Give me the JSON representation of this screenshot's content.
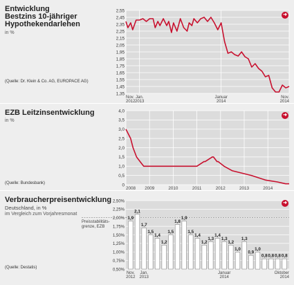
{
  "charts": [
    {
      "title_lines": [
        "Entwicklung",
        "Bestzins 10-jähriger",
        "Hypothekendarlehen"
      ],
      "unit": "in %",
      "source": "(Quelle: Dr. Klein & Co. AG, EUROPACE AG)"
    },
    {
      "title_lines": [
        "EZB Leitzinsentwicklung"
      ],
      "unit": "in %",
      "source": "(Quelle: Bundesbank)"
    },
    {
      "title_lines": [
        "Verbraucherpreisentwicklung"
      ],
      "subtitle": "Deutschland, in %",
      "note": "im Vergleich zum Vorjahresmonat",
      "annotation_lines": [
        "Preisstabilitäts-",
        "grenze, EZB"
      ],
      "source": "(Quelle: Destatis)"
    }
  ],
  "nav_icon": "arrow-right-circle-icon",
  "colors": {
    "line": "#c8102e",
    "panel_bg": "#eeeeee",
    "plot_bg": "#dcdcdc",
    "bar_fill": "#ffffff",
    "accent": "#c8102e"
  },
  "chart_data": [
    {
      "type": "line",
      "title": "Entwicklung Bestzins 10-jähriger Hypothekendarlehen",
      "ylabel": "in %",
      "ylim": [
        1.35,
        2.55
      ],
      "yticks": [
        "2,55",
        "2,45",
        "2,35",
        "2,25",
        "2,15",
        "2,05",
        "1,95",
        "1,85",
        "1,75",
        "1,65",
        "1,55",
        "1,45",
        "1,35"
      ],
      "x_ticks": [
        {
          "label": [
            "Nov.",
            "2012"
          ],
          "t": 0
        },
        {
          "label": [
            "Jan.",
            "2013"
          ],
          "t": 2
        },
        {
          "label": [
            "Januar",
            "2014"
          ],
          "t": 14
        },
        {
          "label": [
            "Nov.",
            "2014"
          ],
          "t": 24
        }
      ],
      "series": [
        {
          "t": [
            0,
            0.3,
            0.7,
            1.0,
            1.5,
            2.0,
            2.5,
            3.0,
            3.5,
            4.0,
            4.3,
            4.7,
            5.0,
            5.5,
            6.0,
            6.3,
            6.7,
            7.0,
            7.5,
            8.0,
            8.5,
            9.0,
            9.3,
            9.7,
            10.0,
            10.5,
            11.0,
            11.5,
            12.0,
            12.5,
            13.0,
            13.5,
            14.0,
            14.5,
            15.0,
            15.5,
            16.0,
            16.5,
            17.0,
            17.5,
            18.0,
            18.5,
            19.0,
            19.5,
            20.0,
            20.5,
            21.0,
            21.5,
            22.0,
            22.5,
            23.0,
            23.5,
            24.0
          ],
          "values": [
            2.39,
            2.3,
            2.37,
            2.27,
            2.41,
            2.41,
            2.43,
            2.39,
            2.43,
            2.43,
            2.3,
            2.39,
            2.33,
            2.43,
            2.33,
            2.39,
            2.23,
            2.37,
            2.25,
            2.43,
            2.3,
            2.25,
            2.37,
            2.33,
            2.43,
            2.37,
            2.43,
            2.45,
            2.39,
            2.45,
            2.37,
            2.27,
            2.37,
            2.1,
            1.93,
            1.95,
            1.91,
            1.89,
            1.95,
            1.88,
            1.85,
            1.73,
            1.78,
            1.71,
            1.67,
            1.59,
            1.61,
            1.43,
            1.37,
            1.37,
            1.47,
            1.43,
            1.45
          ]
        }
      ],
      "grid": true
    },
    {
      "type": "line",
      "title": "EZB Leitzinsentwicklung",
      "ylabel": "in %",
      "ylim": [
        0,
        4.0
      ],
      "yticks": [
        "4,0",
        "3,5",
        "3,0",
        "2,5",
        "2,0",
        "1,5",
        "1,0",
        "0,5",
        "0"
      ],
      "x_labels": [
        "2008",
        "2009",
        "2010",
        "2011",
        "2012",
        "2013",
        "2014"
      ],
      "x_range": [
        2008,
        2014.9
      ],
      "series": [
        {
          "x": [
            2008.0,
            2008.0,
            2008.2,
            2008.3,
            2008.45,
            2008.6,
            2008.75,
            2008.9,
            2009.2,
            2010.2,
            2011.0,
            2011.3,
            2011.35,
            2011.65,
            2011.7,
            2011.85,
            2011.9,
            2012.15,
            2012.5,
            2013.3,
            2013.9,
            2014.4,
            2014.75,
            2014.9
          ],
          "values": [
            3.0,
            3.0,
            2.5,
            2.0,
            1.5,
            1.25,
            1.0,
            1.0,
            1.0,
            1.0,
            1.0,
            1.25,
            1.25,
            1.5,
            1.5,
            1.25,
            1.25,
            1.0,
            0.75,
            0.5,
            0.25,
            0.15,
            0.05,
            0.05
          ]
        }
      ],
      "grid": true
    },
    {
      "type": "bar",
      "title": "Verbraucherpreisentwicklung",
      "ylim": [
        0.5,
        2.5
      ],
      "yticks": [
        "2,50%",
        "2,25%",
        "2,00%",
        "1,75%",
        "1,50%",
        "1,25%",
        "1,00%",
        "0,75%",
        "0,50%"
      ],
      "reference_line": 2.0,
      "values": [
        1.9,
        2.1,
        1.7,
        1.5,
        1.4,
        1.2,
        1.5,
        1.8,
        1.9,
        1.5,
        1.4,
        1.2,
        1.3,
        1.4,
        1.3,
        1.2,
        1.0,
        1.3,
        0.9,
        1.0,
        0.8,
        0.8,
        0.8,
        0.8
      ],
      "value_labels": [
        "1,9",
        "2,1",
        "1,7",
        "1,5",
        "1,4",
        "1,2",
        "1,5",
        "1,8",
        "1,9",
        "1,5",
        "1,4",
        "1,2",
        "1,3",
        "1,4",
        "1,3",
        "1,2",
        "1,0",
        "1,3",
        "0,9",
        "1,0",
        "0,8",
        "0,8",
        "0,8",
        "0,8"
      ],
      "x_ticks": [
        {
          "label": [
            "Nov.",
            "2012"
          ],
          "index": 0
        },
        {
          "label": [
            "Jan.",
            "2013"
          ],
          "index": 2
        },
        {
          "label": [
            "Januar",
            "2014"
          ],
          "index": 14
        },
        {
          "label": [
            "Oktober",
            "2014"
          ],
          "index": 23
        }
      ],
      "grid": true
    }
  ]
}
